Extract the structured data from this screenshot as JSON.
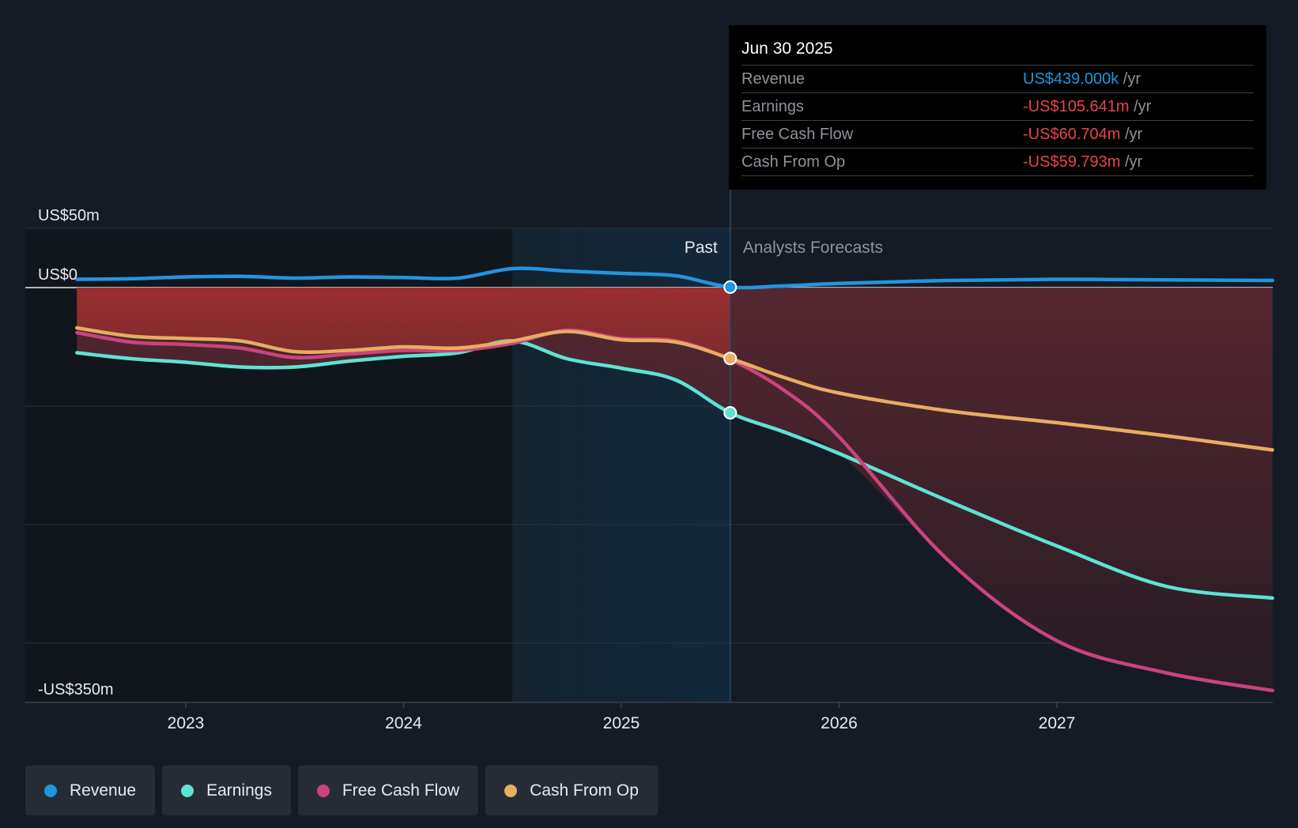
{
  "chart_data": {
    "type": "line",
    "x_unit": "date",
    "y_unit": "US$m",
    "ylim": [
      -350,
      50
    ],
    "y_ticks": [
      {
        "value": 50,
        "label": "US$50m"
      },
      {
        "value": 0,
        "label": "US$0"
      },
      {
        "value": -350,
        "label": "-US$350m"
      }
    ],
    "gridlines": [
      50,
      0,
      -100,
      -200,
      -300,
      -350
    ],
    "x_ticks": [
      {
        "value": 2023.0,
        "label": "2023"
      },
      {
        "value": 2024.0,
        "label": "2024"
      },
      {
        "value": 2025.0,
        "label": "2025"
      },
      {
        "value": 2026.0,
        "label": "2026"
      },
      {
        "value": 2027.0,
        "label": "2027"
      }
    ],
    "xlim": [
      2022.27,
      2027.99
    ],
    "highlight_range": [
      2024.5,
      2025.5
    ],
    "divider_x": 2025.5,
    "past_label": "Past",
    "forecast_label": "Analysts Forecasts",
    "series": [
      {
        "name": "Revenue",
        "color": "#2394df",
        "area": false,
        "points": [
          [
            2022.5,
            7
          ],
          [
            2022.75,
            7.5
          ],
          [
            2023.0,
            9
          ],
          [
            2023.25,
            9.5
          ],
          [
            2023.5,
            8
          ],
          [
            2023.75,
            9
          ],
          [
            2024.0,
            8.5
          ],
          [
            2024.25,
            8
          ],
          [
            2024.5,
            16
          ],
          [
            2024.75,
            14
          ],
          [
            2025.0,
            12
          ],
          [
            2025.25,
            10
          ],
          [
            2025.5,
            0.439
          ],
          [
            2025.75,
            1.5
          ],
          [
            2026.0,
            3.5
          ],
          [
            2026.5,
            6
          ],
          [
            2027.0,
            7
          ],
          [
            2027.5,
            6.5
          ],
          [
            2027.99,
            6
          ]
        ]
      },
      {
        "name": "Earnings",
        "color": "#5fe2d3",
        "area": true,
        "points": [
          [
            2022.5,
            -55
          ],
          [
            2022.75,
            -60
          ],
          [
            2023.0,
            -63
          ],
          [
            2023.25,
            -67
          ],
          [
            2023.5,
            -67
          ],
          [
            2023.75,
            -62
          ],
          [
            2024.0,
            -58
          ],
          [
            2024.25,
            -55
          ],
          [
            2024.5,
            -45
          ],
          [
            2024.75,
            -60
          ],
          [
            2025.0,
            -68
          ],
          [
            2025.25,
            -78
          ],
          [
            2025.5,
            -105.641
          ],
          [
            2025.75,
            -122
          ],
          [
            2026.0,
            -140
          ],
          [
            2026.5,
            -180
          ],
          [
            2027.0,
            -218
          ],
          [
            2027.5,
            -252
          ],
          [
            2027.99,
            -262
          ]
        ]
      },
      {
        "name": "Free Cash Flow",
        "color": "#c9447f",
        "area": true,
        "points": [
          [
            2022.5,
            -38
          ],
          [
            2022.75,
            -46
          ],
          [
            2023.0,
            -48
          ],
          [
            2023.25,
            -51
          ],
          [
            2023.5,
            -59
          ],
          [
            2023.75,
            -56
          ],
          [
            2024.0,
            -53
          ],
          [
            2024.25,
            -53
          ],
          [
            2024.5,
            -47
          ],
          [
            2024.75,
            -36
          ],
          [
            2025.0,
            -43
          ],
          [
            2025.25,
            -45
          ],
          [
            2025.5,
            -60.704
          ],
          [
            2025.75,
            -87
          ],
          [
            2026.0,
            -126
          ],
          [
            2026.5,
            -230
          ],
          [
            2027.0,
            -298
          ],
          [
            2027.5,
            -325
          ],
          [
            2027.99,
            -340
          ]
        ]
      },
      {
        "name": "Cash From Op",
        "color": "#e8ac62",
        "area": true,
        "points": [
          [
            2022.5,
            -34
          ],
          [
            2022.75,
            -41
          ],
          [
            2023.0,
            -43
          ],
          [
            2023.25,
            -45
          ],
          [
            2023.5,
            -54
          ],
          [
            2023.75,
            -53
          ],
          [
            2024.0,
            -50
          ],
          [
            2024.25,
            -51
          ],
          [
            2024.5,
            -45
          ],
          [
            2024.75,
            -37
          ],
          [
            2025.0,
            -44
          ],
          [
            2025.25,
            -46
          ],
          [
            2025.5,
            -59.793
          ],
          [
            2025.75,
            -76
          ],
          [
            2026.0,
            -89
          ],
          [
            2026.5,
            -104
          ],
          [
            2027.0,
            -114
          ],
          [
            2027.5,
            -125
          ],
          [
            2027.99,
            -137
          ]
        ]
      }
    ]
  },
  "tooltip": {
    "date": "Jun 30 2025",
    "unit": "/yr",
    "rows": [
      {
        "label": "Revenue",
        "value": "US$439.000k",
        "color": "#2394df"
      },
      {
        "label": "Earnings",
        "value": "-US$105.641m",
        "color": "#e8454b"
      },
      {
        "label": "Free Cash Flow",
        "value": "-US$60.704m",
        "color": "#e8454b"
      },
      {
        "label": "Cash From Op",
        "value": "-US$59.793m",
        "color": "#e8454b"
      }
    ]
  },
  "legend": [
    {
      "label": "Revenue",
      "color": "#2394df"
    },
    {
      "label": "Earnings",
      "color": "#5fe2d3"
    },
    {
      "label": "Free Cash Flow",
      "color": "#c9447f"
    },
    {
      "label": "Cash From Op",
      "color": "#e8ac62"
    }
  ]
}
